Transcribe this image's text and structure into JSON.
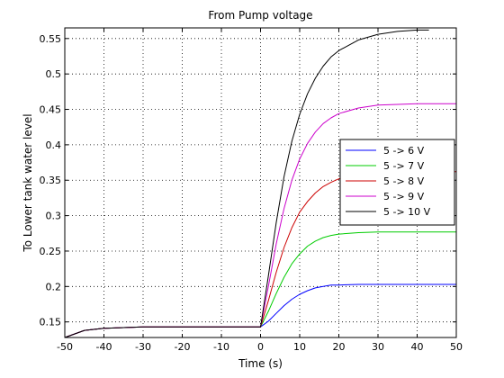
{
  "chart_data": {
    "type": "line",
    "title": "From Pump voltage",
    "xlabel": "Time (s)",
    "ylabel": "To Lower tank water level",
    "xlim": [
      -50,
      50
    ],
    "ylim": [
      0.128,
      0.565
    ],
    "xticks": [
      -50,
      -40,
      -30,
      -20,
      -10,
      0,
      10,
      20,
      30,
      40,
      50
    ],
    "xtick_labels": [
      "-50",
      "-40",
      "-30",
      "-20",
      "-10",
      "0",
      "10",
      "20",
      "30",
      "40",
      "50"
    ],
    "yticks": [
      0.15,
      0.2,
      0.25,
      0.3,
      0.35,
      0.4,
      0.45,
      0.5,
      0.55
    ],
    "ytick_labels": [
      "0.15",
      "0.2",
      "0.25",
      "0.3",
      "0.35",
      "0.4",
      "0.45",
      "0.5",
      "0.55"
    ],
    "grid": true,
    "legend_position": "right",
    "series": [
      {
        "name": "5 -> 6 V",
        "color": "#0000ff",
        "x": [
          -50,
          -45,
          -40,
          -35,
          -30,
          -20,
          -10,
          0,
          2,
          4,
          6,
          8,
          10,
          12,
          14,
          16,
          18,
          20,
          25,
          30,
          40,
          50
        ],
        "y": [
          0.128,
          0.138,
          0.141,
          0.142,
          0.143,
          0.143,
          0.143,
          0.143,
          0.151,
          0.162,
          0.173,
          0.182,
          0.189,
          0.194,
          0.198,
          0.2,
          0.202,
          0.202,
          0.203,
          0.203,
          0.203,
          0.203
        ]
      },
      {
        "name": "5 -> 7 V",
        "color": "#00cc00",
        "x": [
          -50,
          -45,
          -40,
          -35,
          -30,
          -20,
          -10,
          0,
          2,
          4,
          6,
          8,
          10,
          12,
          14,
          16,
          18,
          20,
          25,
          30,
          40,
          50
        ],
        "y": [
          0.128,
          0.138,
          0.141,
          0.142,
          0.143,
          0.143,
          0.143,
          0.143,
          0.165,
          0.19,
          0.213,
          0.232,
          0.246,
          0.257,
          0.264,
          0.269,
          0.272,
          0.274,
          0.276,
          0.277,
          0.277,
          0.277
        ]
      },
      {
        "name": "5 -> 8 V",
        "color": "#cc0000",
        "x": [
          -50,
          -45,
          -40,
          -35,
          -30,
          -20,
          -10,
          0,
          2,
          4,
          6,
          8,
          10,
          12,
          14,
          16,
          18,
          20,
          25,
          30,
          40,
          50
        ],
        "y": [
          0.128,
          0.138,
          0.141,
          0.142,
          0.143,
          0.143,
          0.143,
          0.143,
          0.18,
          0.22,
          0.255,
          0.283,
          0.305,
          0.32,
          0.332,
          0.341,
          0.347,
          0.352,
          0.358,
          0.361,
          0.362,
          0.362
        ]
      },
      {
        "name": "5 -> 9 V",
        "color": "#cc00cc",
        "x": [
          -50,
          -45,
          -40,
          -35,
          -30,
          -20,
          -10,
          0,
          2,
          4,
          6,
          8,
          10,
          12,
          14,
          16,
          18,
          20,
          25,
          30,
          40,
          50
        ],
        "y": [
          0.128,
          0.138,
          0.141,
          0.142,
          0.143,
          0.143,
          0.143,
          0.143,
          0.2,
          0.26,
          0.31,
          0.35,
          0.38,
          0.402,
          0.418,
          0.43,
          0.438,
          0.444,
          0.452,
          0.456,
          0.458,
          0.458
        ]
      },
      {
        "name": "5 -> 10 V",
        "color": "#000000",
        "x": [
          -50,
          -45,
          -40,
          -35,
          -30,
          -20,
          -10,
          0,
          2,
          4,
          6,
          8,
          10,
          12,
          14,
          16,
          18,
          20,
          25,
          30,
          35,
          40,
          43
        ],
        "y": [
          0.128,
          0.138,
          0.141,
          0.142,
          0.143,
          0.143,
          0.143,
          0.143,
          0.215,
          0.29,
          0.355,
          0.405,
          0.443,
          0.472,
          0.494,
          0.511,
          0.524,
          0.533,
          0.548,
          0.556,
          0.56,
          0.562,
          0.562
        ]
      }
    ]
  }
}
